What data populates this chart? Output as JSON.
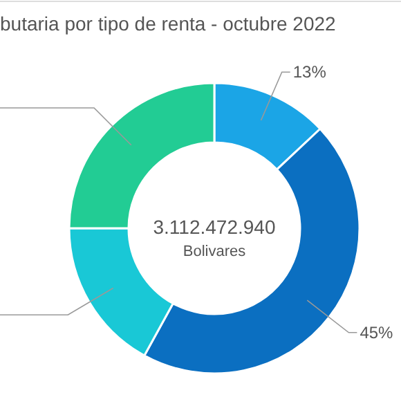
{
  "chart_data": {
    "type": "donut",
    "title": "butaria por tipo de renta - octubre 2022",
    "categories": [
      null,
      null,
      null,
      null
    ],
    "values": [
      13,
      45,
      17,
      25
    ],
    "colors": [
      "#1ba5e6",
      "#0b6fc1",
      "#19c8d6",
      "#22cc94"
    ],
    "value_labels": [
      "13%",
      "45%",
      null,
      null
    ],
    "annotations": [
      "3.112.472.940",
      "Bolivares"
    ]
  }
}
